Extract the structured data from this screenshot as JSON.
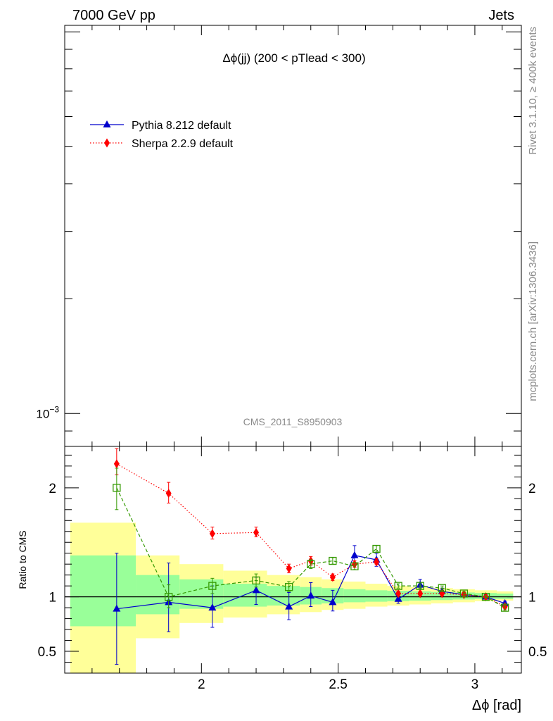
{
  "header": {
    "left": "7000 GeV pp",
    "right": "Jets"
  },
  "side_labels": {
    "rivet": "Rivet 3.1.10, ≥ 400k events",
    "mcplots": "mcplots.cern.ch [arXiv:1306.3436]"
  },
  "chart_data": {
    "type": "line",
    "title": "Δϕ(jj) (200 < pTlead <  300)",
    "watermark": "CMS_2011_S8950903",
    "xlabel": "Δϕ [rad]",
    "ylabel_ratio": "Ratio to CMS",
    "xlim": [
      1.5,
      3.17
    ],
    "x_ticks": [
      {
        "v": 2,
        "label": "2"
      },
      {
        "v": 2.5,
        "label": "2.5"
      },
      {
        "v": 3,
        "label": "3"
      }
    ],
    "main_panel": {
      "y_scale": "log",
      "ylim": [
        0.00082,
        0.0104
      ],
      "y_ticks": [
        {
          "v": 0.001,
          "base": "10",
          "exp": "−3"
        }
      ]
    },
    "ratio_panel": {
      "ylim": [
        0.3,
        2.38
      ],
      "y_ticks": [
        {
          "v": 0.5,
          "label": "0.5"
        },
        {
          "v": 1,
          "label": "1"
        },
        {
          "v": 2,
          "label": "2"
        }
      ]
    },
    "bins": [
      {
        "lo": 1.52,
        "hi": 1.76
      },
      {
        "lo": 1.76,
        "hi": 1.92
      },
      {
        "lo": 1.92,
        "hi": 2.08
      },
      {
        "lo": 2.08,
        "hi": 2.24
      },
      {
        "lo": 2.24,
        "hi": 2.36
      },
      {
        "lo": 2.36,
        "hi": 2.44
      },
      {
        "lo": 2.44,
        "hi": 2.52
      },
      {
        "lo": 2.52,
        "hi": 2.6
      },
      {
        "lo": 2.6,
        "hi": 2.68
      },
      {
        "lo": 2.68,
        "hi": 2.76
      },
      {
        "lo": 2.76,
        "hi": 2.84
      },
      {
        "lo": 2.84,
        "hi": 2.92
      },
      {
        "lo": 2.92,
        "hi": 3.0
      },
      {
        "lo": 3.0,
        "hi": 3.08
      },
      {
        "lo": 3.08,
        "hi": 3.14
      }
    ],
    "band_inner": [
      [
        0.73,
        1.38
      ],
      [
        0.84,
        1.2
      ],
      [
        0.89,
        1.16
      ],
      [
        0.91,
        1.12
      ],
      [
        0.92,
        1.1
      ],
      [
        0.93,
        1.09
      ],
      [
        0.94,
        1.08
      ],
      [
        0.95,
        1.07
      ],
      [
        0.955,
        1.06
      ],
      [
        0.96,
        1.055
      ],
      [
        0.965,
        1.05
      ],
      [
        0.97,
        1.045
      ],
      [
        0.975,
        1.04
      ],
      [
        0.98,
        1.035
      ],
      [
        0.98,
        1.03
      ]
    ],
    "band_outer": [
      [
        0.3,
        1.68
      ],
      [
        0.62,
        1.38
      ],
      [
        0.76,
        1.3
      ],
      [
        0.81,
        1.24
      ],
      [
        0.84,
        1.2
      ],
      [
        0.86,
        1.18
      ],
      [
        0.88,
        1.16
      ],
      [
        0.89,
        1.14
      ],
      [
        0.91,
        1.12
      ],
      [
        0.92,
        1.1
      ],
      [
        0.93,
        1.09
      ],
      [
        0.94,
        1.08
      ],
      [
        0.95,
        1.07
      ],
      [
        0.96,
        1.06
      ],
      [
        0.965,
        1.05
      ]
    ],
    "series": [
      {
        "name": "Pythia 8.212 default",
        "color": "#0000cc",
        "marker": "triangle",
        "dash": "solid",
        "points": [
          {
            "x": 1.69,
            "y": 0.89,
            "lo": 0.38,
            "hi": 1.4
          },
          {
            "x": 1.88,
            "y": 0.95,
            "lo": 0.68,
            "hi": 1.31
          },
          {
            "x": 2.04,
            "y": 0.9,
            "lo": 0.72,
            "hi": 1.1
          },
          {
            "x": 2.2,
            "y": 1.06,
            "lo": 0.93,
            "hi": 1.18
          },
          {
            "x": 2.32,
            "y": 0.91,
            "lo": 0.79,
            "hi": 1.04
          },
          {
            "x": 2.4,
            "y": 1.01,
            "lo": 0.91,
            "hi": 1.13
          },
          {
            "x": 2.48,
            "y": 0.95,
            "lo": 0.87,
            "hi": 1.06
          },
          {
            "x": 2.56,
            "y": 1.38,
            "lo": 1.29,
            "hi": 1.47
          },
          {
            "x": 2.64,
            "y": 1.34,
            "lo": 1.28,
            "hi": 1.4
          },
          {
            "x": 2.72,
            "y": 0.98,
            "lo": 0.94,
            "hi": 1.03
          },
          {
            "x": 2.8,
            "y": 1.11,
            "lo": 1.07,
            "hi": 1.16
          },
          {
            "x": 2.88,
            "y": 1.05,
            "lo": 1.02,
            "hi": 1.08
          },
          {
            "x": 2.96,
            "y": 1.02,
            "lo": 1.0,
            "hi": 1.04
          },
          {
            "x": 3.04,
            "y": 1.0,
            "lo": 0.99,
            "hi": 1.02
          },
          {
            "x": 3.11,
            "y": 0.94,
            "lo": 0.92,
            "hi": 0.96
          }
        ]
      },
      {
        "name": "Sherpa 2.2.9 default",
        "color": "#ff0000",
        "marker": "diamond",
        "dash": "dotted",
        "points": [
          {
            "x": 1.69,
            "y": 2.22,
            "lo": 2.12,
            "hi": 2.36
          },
          {
            "x": 1.88,
            "y": 1.95,
            "lo": 1.86,
            "hi": 2.05
          },
          {
            "x": 2.04,
            "y": 1.58,
            "lo": 1.53,
            "hi": 1.64
          },
          {
            "x": 2.2,
            "y": 1.59,
            "lo": 1.55,
            "hi": 1.64
          },
          {
            "x": 2.32,
            "y": 1.26,
            "lo": 1.22,
            "hi": 1.3
          },
          {
            "x": 2.4,
            "y": 1.33,
            "lo": 1.29,
            "hi": 1.37
          },
          {
            "x": 2.48,
            "y": 1.18,
            "lo": 1.15,
            "hi": 1.21
          },
          {
            "x": 2.56,
            "y": 1.3,
            "lo": 1.27,
            "hi": 1.33
          },
          {
            "x": 2.64,
            "y": 1.32,
            "lo": 1.3,
            "hi": 1.35
          },
          {
            "x": 2.72,
            "y": 1.03,
            "lo": 1.01,
            "hi": 1.05
          },
          {
            "x": 2.8,
            "y": 1.03,
            "lo": 1.01,
            "hi": 1.05
          },
          {
            "x": 2.88,
            "y": 1.03,
            "lo": 1.01,
            "hi": 1.05
          },
          {
            "x": 2.96,
            "y": 1.02,
            "lo": 1.0,
            "hi": 1.04
          },
          {
            "x": 3.04,
            "y": 1.0,
            "lo": 0.99,
            "hi": 1.01
          },
          {
            "x": 3.11,
            "y": 0.91,
            "lo": 0.9,
            "hi": 0.93
          }
        ]
      },
      {
        "name": "",
        "color": "#339900",
        "marker": "open-square",
        "dash": "dashed",
        "points": [
          {
            "x": 1.69,
            "y": 2.0,
            "lo": 1.8,
            "hi": 2.18
          },
          {
            "x": 1.88,
            "y": 1.0,
            "lo": 0.9,
            "hi": 1.11
          },
          {
            "x": 2.04,
            "y": 1.1,
            "lo": 1.03,
            "hi": 1.17
          },
          {
            "x": 2.2,
            "y": 1.15,
            "lo": 1.09,
            "hi": 1.21
          },
          {
            "x": 2.32,
            "y": 1.09,
            "lo": 1.05,
            "hi": 1.14
          },
          {
            "x": 2.4,
            "y": 1.3,
            "lo": 1.26,
            "hi": 1.34
          },
          {
            "x": 2.48,
            "y": 1.33,
            "lo": 1.3,
            "hi": 1.36
          },
          {
            "x": 2.56,
            "y": 1.28,
            "lo": 1.25,
            "hi": 1.31
          },
          {
            "x": 2.64,
            "y": 1.44,
            "lo": 1.41,
            "hi": 1.47
          },
          {
            "x": 2.72,
            "y": 1.1,
            "lo": 1.08,
            "hi": 1.12
          },
          {
            "x": 2.8,
            "y": 1.1,
            "lo": 1.08,
            "hi": 1.12
          },
          {
            "x": 2.88,
            "y": 1.08,
            "lo": 1.06,
            "hi": 1.1
          },
          {
            "x": 2.96,
            "y": 1.03,
            "lo": 1.01,
            "hi": 1.05
          },
          {
            "x": 3.04,
            "y": 1.0,
            "lo": 0.99,
            "hi": 1.01
          },
          {
            "x": 3.11,
            "y": 0.9,
            "lo": 0.88,
            "hi": 0.92
          }
        ]
      }
    ]
  }
}
